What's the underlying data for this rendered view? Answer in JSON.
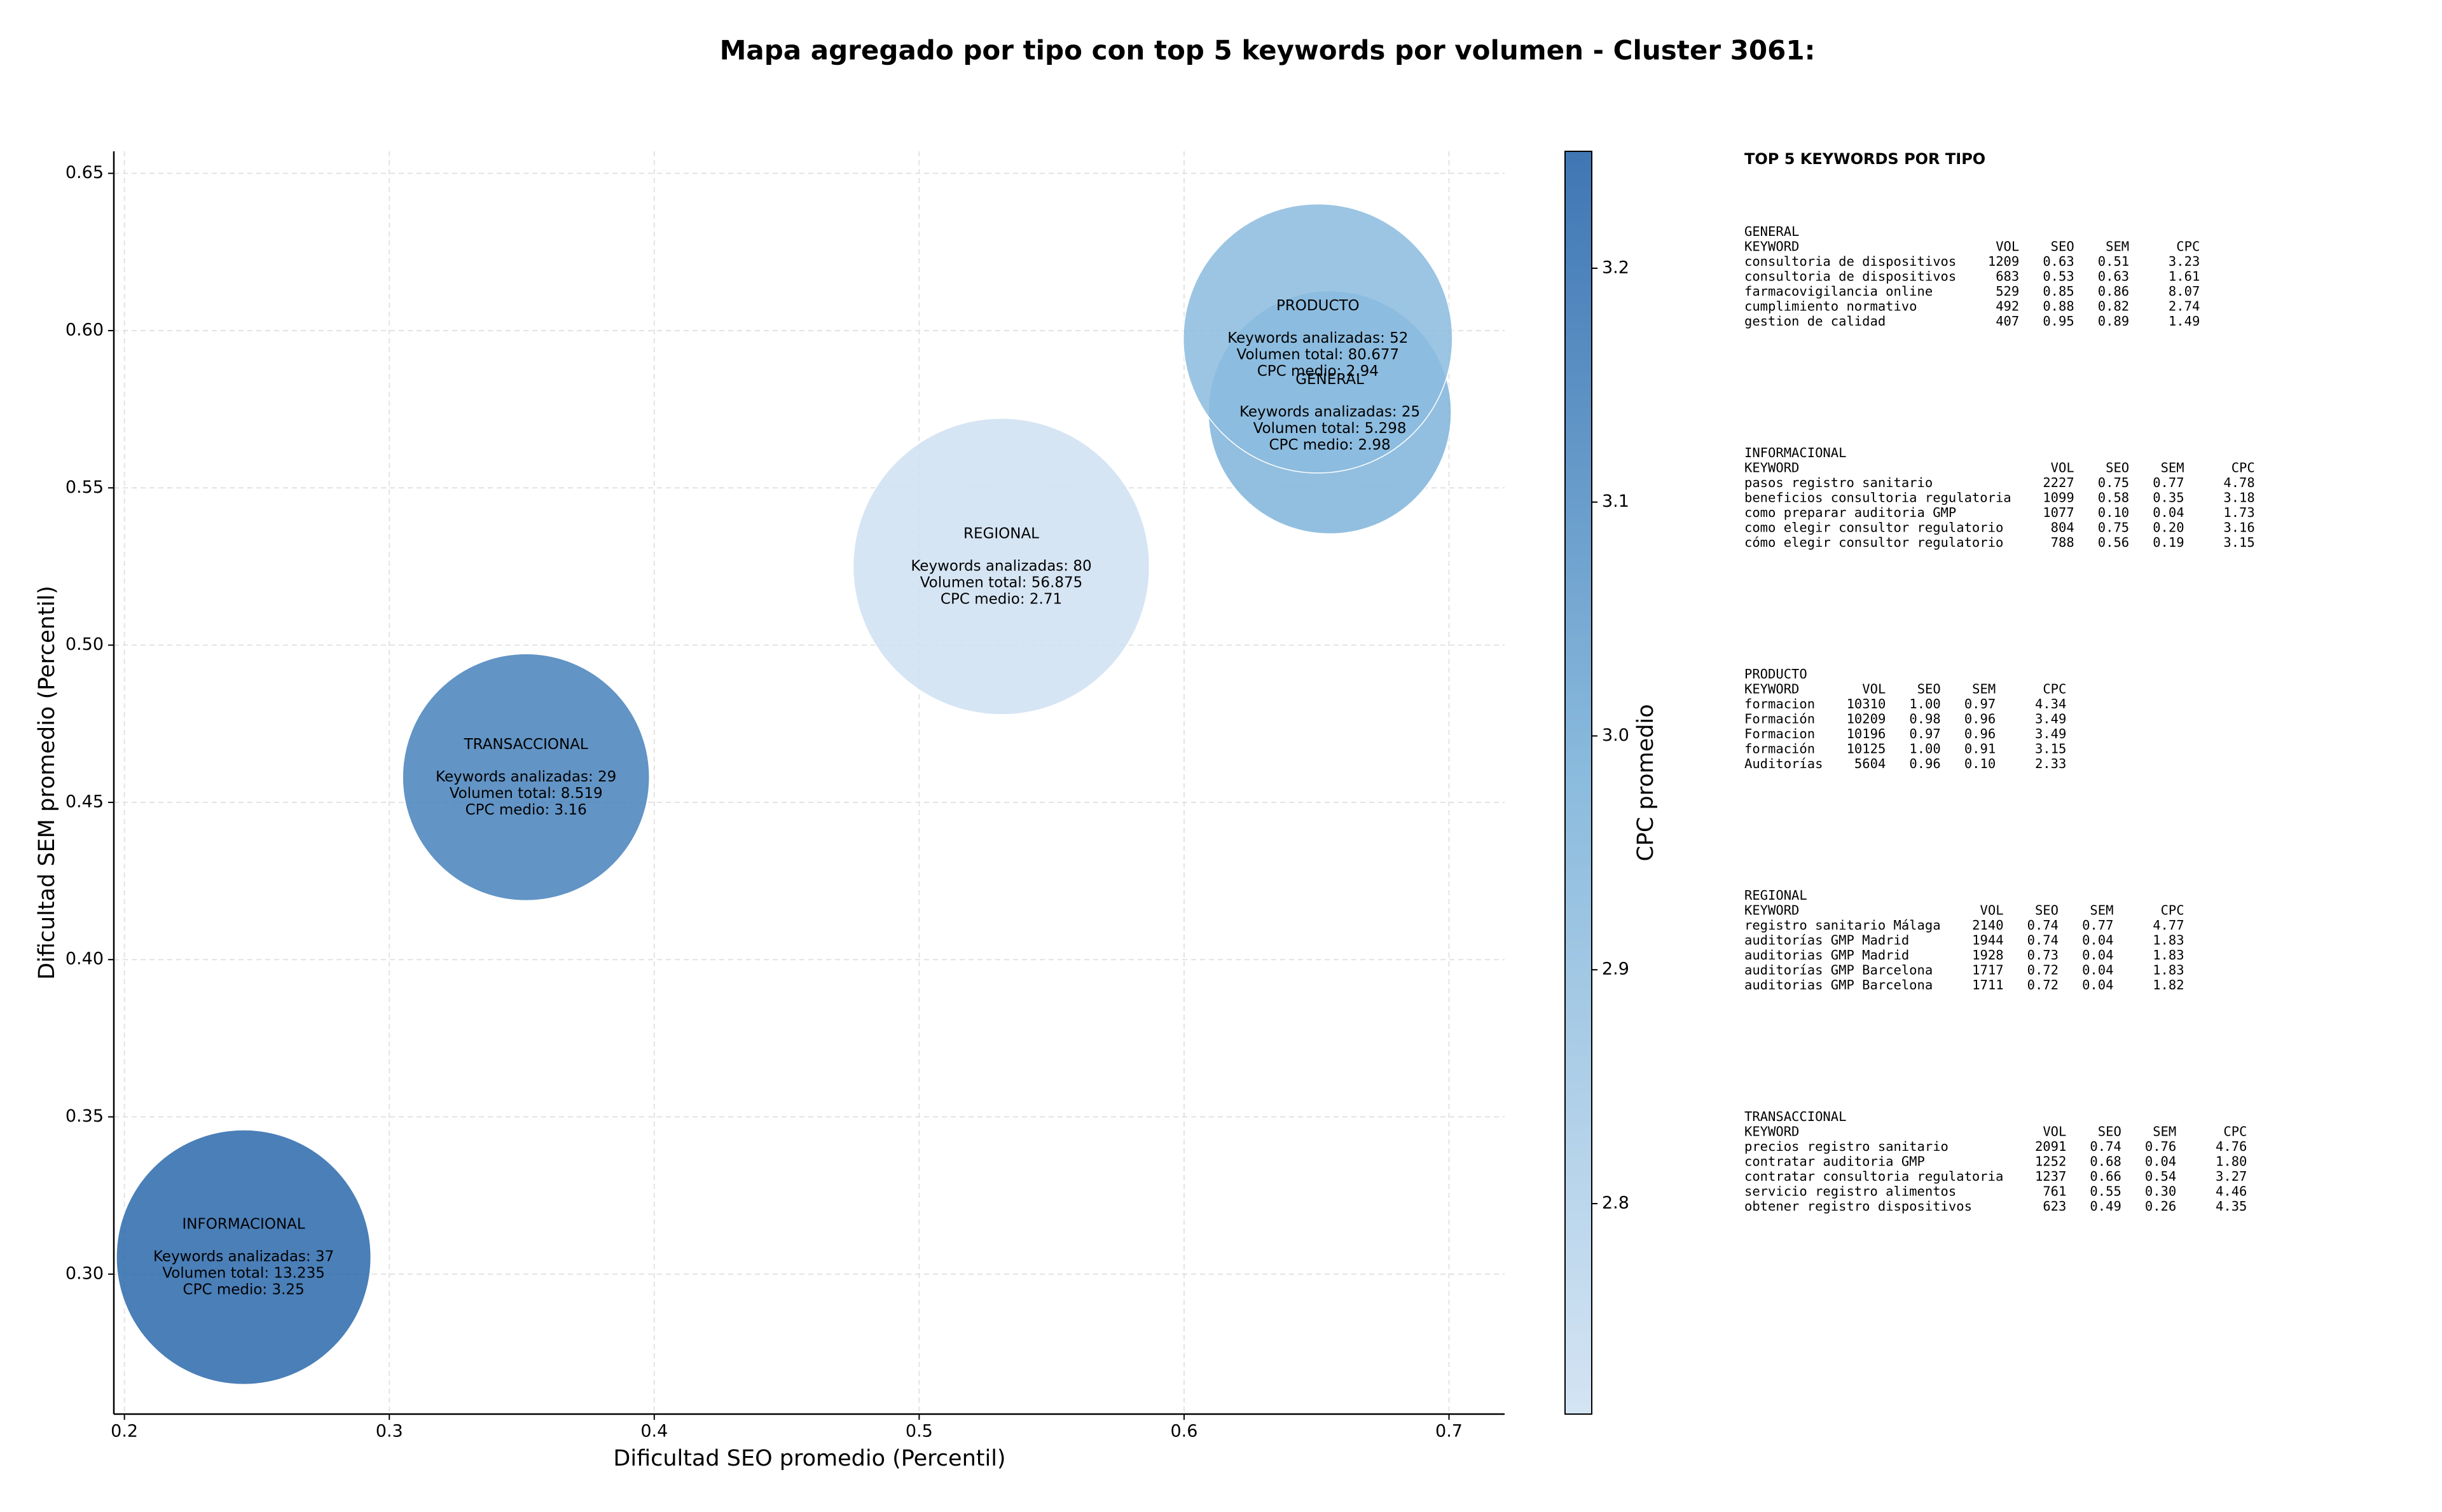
{
  "chart_data": {
    "type": "bubble",
    "title": "Mapa agregado por tipo con top 5 keywords por volumen - Cluster 3061:",
    "xlabel": "Dificultad SEO promedio (Percentil)",
    "ylabel": "Dificultad SEM promedio (Percentil)",
    "xlim": [
      0.196,
      0.721
    ],
    "ylim": [
      0.2555,
      0.657
    ],
    "xticks": [
      0.2,
      0.3,
      0.4,
      0.5,
      0.6,
      0.7
    ],
    "yticks": [
      {
        "value": 0.3,
        "label": "0.30"
      },
      0.35,
      {
        "value": 0.4,
        "label": "0.40"
      },
      0.45,
      {
        "value": 0.5,
        "label": "0.50"
      },
      0.55,
      {
        "value": 0.6,
        "label": "0.60"
      },
      0.65
    ],
    "grid": true,
    "colorbar": {
      "label": "CPC promedio",
      "lim": [
        2.71,
        3.25
      ],
      "ticks": [
        2.8,
        2.9,
        {
          "value": 3,
          "label": "3.0"
        },
        3.1,
        3.2
      ],
      "colormap": [
        "#cfe1f2",
        "#7fb4da",
        "#2a68ac"
      ]
    },
    "bubbles": [
      {
        "name": "GENERAL",
        "x": 0.655,
        "y": 0.574,
        "keywords": 25,
        "cpc": 2.98,
        "lines": [
          "Keywords analizadas: 25",
          "Volumen total: 5.298",
          "CPC medio: 2.98"
        ]
      },
      {
        "name": "INFORMACIONAL",
        "x": 0.245,
        "y": 0.3054,
        "keywords": 37,
        "cpc": 3.25,
        "lines": [
          "Keywords analizadas: 37",
          "Volumen total: 13.235",
          "CPC medio: 3.25"
        ]
      },
      {
        "name": "PRODUCTO",
        "x": 0.6505,
        "y": 0.5975,
        "keywords": 52,
        "cpc": 2.94,
        "lines": [
          "Keywords analizadas: 52",
          "Volumen total: 80.677",
          "CPC medio: 2.94"
        ]
      },
      {
        "name": "REGIONAL",
        "x": 0.531,
        "y": 0.525,
        "keywords": 80,
        "cpc": 2.71,
        "lines": [
          "Keywords analizadas: 80",
          "Volumen total: 56.875",
          "CPC medio: 2.71"
        ]
      },
      {
        "name": "TRANSACCIONAL",
        "x": 0.3516,
        "y": 0.458,
        "keywords": 29,
        "cpc": 3.16,
        "lines": [
          "Keywords analizadas: 29",
          "Volumen total: 8.519",
          "CPC medio: 3.16"
        ]
      }
    ]
  },
  "top_keywords": {
    "title": "TOP 5 KEYWORDS POR TIPO",
    "columns": [
      "KEYWORD",
      "VOL",
      "SEO",
      "SEM",
      "CPC"
    ],
    "groups": [
      {
        "name": "GENERAL",
        "rows": [
          [
            "consultoria de dispositivos",
            "1209",
            "0.63",
            "0.51",
            "3.23"
          ],
          [
            "consultoria de dispositivos",
            "683",
            "0.53",
            "0.63",
            "1.61"
          ],
          [
            "farmacovigilancia online",
            "529",
            "0.85",
            "0.86",
            "8.07"
          ],
          [
            "cumplimiento normativo",
            "492",
            "0.88",
            "0.82",
            "2.74"
          ],
          [
            "gestion de calidad",
            "407",
            "0.95",
            "0.89",
            "1.49"
          ]
        ]
      },
      {
        "name": "INFORMACIONAL",
        "rows": [
          [
            "pasos registro sanitario",
            "2227",
            "0.75",
            "0.77",
            "4.78"
          ],
          [
            "beneficios consultoria regulatoria",
            "1099",
            "0.58",
            "0.35",
            "3.18"
          ],
          [
            "como preparar auditoria GMP",
            "1077",
            "0.10",
            "0.04",
            "1.73"
          ],
          [
            "como elegir consultor regulatorio",
            "804",
            "0.75",
            "0.20",
            "3.16"
          ],
          [
            "cómo elegir consultor regulatorio",
            "788",
            "0.56",
            "0.19",
            "3.15"
          ]
        ]
      },
      {
        "name": "PRODUCTO",
        "rows": [
          [
            "formacion",
            "10310",
            "1.00",
            "0.97",
            "4.34"
          ],
          [
            "Formación",
            "10209",
            "0.98",
            "0.96",
            "3.49"
          ],
          [
            "Formacion",
            "10196",
            "0.97",
            "0.96",
            "3.49"
          ],
          [
            "formación",
            "10125",
            "1.00",
            "0.91",
            "3.15"
          ],
          [
            "Auditorías",
            "5604",
            "0.96",
            "0.10",
            "2.33"
          ]
        ]
      },
      {
        "name": "REGIONAL",
        "rows": [
          [
            "registro sanitario Málaga",
            "2140",
            "0.74",
            "0.77",
            "4.77"
          ],
          [
            "auditorías GMP Madrid",
            "1944",
            "0.74",
            "0.04",
            "1.83"
          ],
          [
            "auditorias GMP Madrid",
            "1928",
            "0.73",
            "0.04",
            "1.83"
          ],
          [
            "auditorías GMP Barcelona",
            "1717",
            "0.72",
            "0.04",
            "1.83"
          ],
          [
            "auditorias GMP Barcelona",
            "1711",
            "0.72",
            "0.04",
            "1.82"
          ]
        ]
      },
      {
        "name": "TRANSACCIONAL",
        "rows": [
          [
            "precios registro sanitario",
            "2091",
            "0.74",
            "0.76",
            "4.76"
          ],
          [
            "contratar auditoria GMP",
            "1252",
            "0.68",
            "0.04",
            "1.80"
          ],
          [
            "contratar consultoria regulatoria",
            "1237",
            "0.66",
            "0.54",
            "3.27"
          ],
          [
            "servicio registro alimentos",
            "761",
            "0.55",
            "0.30",
            "4.46"
          ],
          [
            "obtener registro dispositivos",
            "623",
            "0.49",
            "0.26",
            "4.35"
          ]
        ]
      }
    ]
  }
}
